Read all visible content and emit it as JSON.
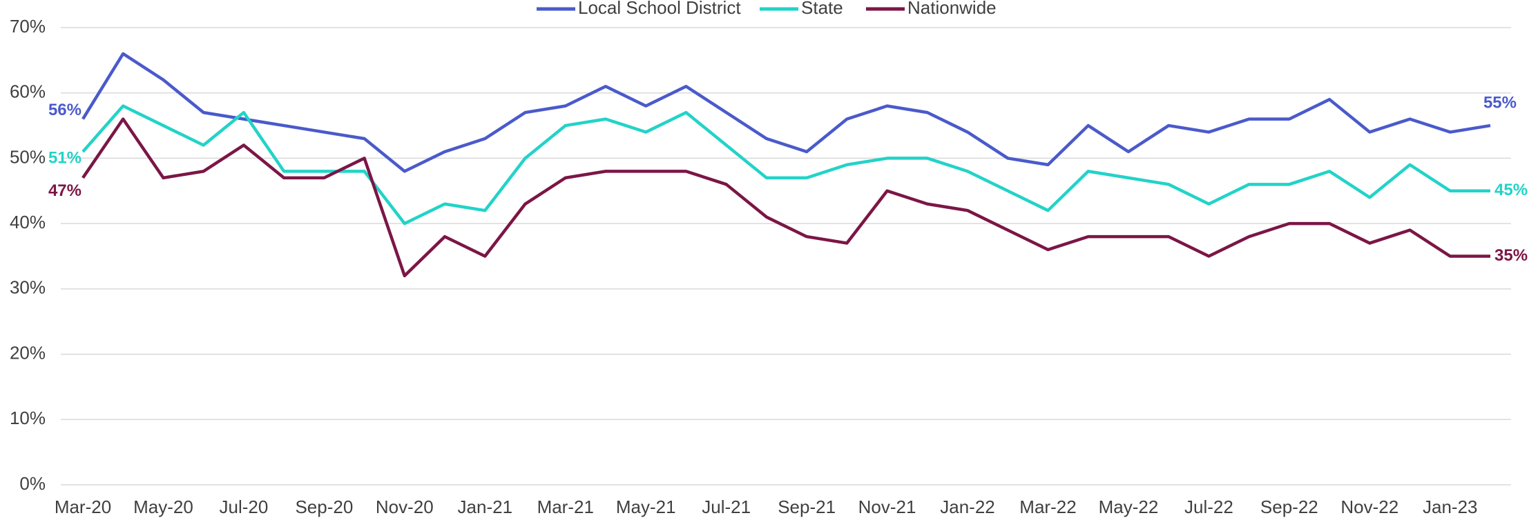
{
  "chart_data": {
    "type": "line",
    "categories": [
      "Mar-20",
      null,
      "May-20",
      null,
      "Jul-20",
      null,
      "Sep-20",
      null,
      "Nov-20",
      null,
      "Jan-21",
      null,
      "Mar-21",
      null,
      "May-21",
      null,
      "Jul-21",
      null,
      "Sep-21",
      null,
      "Nov-21",
      null,
      "Jan-22",
      null,
      "Mar-22",
      null,
      "May-22",
      null,
      "Jul-22",
      null,
      "Sep-22",
      null,
      "Nov-22",
      null,
      "Jan-23",
      null
    ],
    "series": [
      {
        "name": "Local School District",
        "color": "#4a5acb",
        "values": [
          56,
          66,
          62,
          57,
          56,
          55,
          54,
          53,
          48,
          51,
          53,
          57,
          58,
          61,
          58,
          61,
          57,
          53,
          51,
          56,
          58,
          57,
          54,
          50,
          49,
          55,
          51,
          55,
          54,
          56,
          56,
          59,
          54,
          56,
          54,
          55
        ],
        "value_labels": [
          "56%",
          null,
          null,
          null,
          null,
          null,
          null,
          null,
          null,
          null,
          null,
          null,
          null,
          null,
          null,
          null,
          null,
          null,
          null,
          null,
          null,
          null,
          null,
          null,
          null,
          null,
          null,
          null,
          null,
          null,
          null,
          null,
          null,
          null,
          null,
          "55%"
        ]
      },
      {
        "name": "State",
        "color": "#22d3c8",
        "values": [
          51,
          58,
          55,
          52,
          57,
          48,
          48,
          48,
          40,
          43,
          42,
          50,
          55,
          56,
          54,
          57,
          52,
          47,
          47,
          49,
          50,
          50,
          48,
          45,
          42,
          48,
          47,
          46,
          43,
          46,
          46,
          48,
          44,
          49,
          45,
          45
        ],
        "value_labels": [
          "51%",
          null,
          null,
          null,
          null,
          null,
          null,
          null,
          null,
          null,
          null,
          null,
          null,
          null,
          null,
          null,
          null,
          null,
          null,
          null,
          null,
          null,
          null,
          null,
          null,
          null,
          null,
          null,
          null,
          null,
          null,
          null,
          null,
          null,
          null,
          "45%"
        ]
      },
      {
        "name": "Nationwide",
        "color": "#7b1646",
        "values": [
          47,
          56,
          47,
          48,
          52,
          47,
          47,
          50,
          32,
          38,
          35,
          43,
          47,
          48,
          48,
          48,
          46,
          41,
          38,
          37,
          45,
          43,
          42,
          39,
          36,
          38,
          38,
          38,
          35,
          38,
          40,
          40,
          37,
          39,
          35,
          35
        ],
        "value_labels": [
          "47%",
          null,
          null,
          null,
          null,
          null,
          null,
          null,
          null,
          null,
          null,
          null,
          null,
          null,
          null,
          null,
          null,
          null,
          null,
          null,
          null,
          null,
          null,
          null,
          null,
          null,
          null,
          null,
          null,
          null,
          null,
          null,
          null,
          null,
          null,
          "35%"
        ]
      }
    ],
    "ylim": [
      0,
      70
    ],
    "yticks": [
      {
        "value": 0,
        "label": "0%"
      },
      {
        "value": 10,
        "label": "10%"
      },
      {
        "value": 20,
        "label": "20%"
      },
      {
        "value": 30,
        "label": "30%"
      },
      {
        "value": 40,
        "label": "40%"
      },
      {
        "value": 50,
        "label": "50%"
      },
      {
        "value": 60,
        "label": "60%"
      },
      {
        "value": 70,
        "label": "70%"
      }
    ],
    "grid": true,
    "legend": "top"
  }
}
